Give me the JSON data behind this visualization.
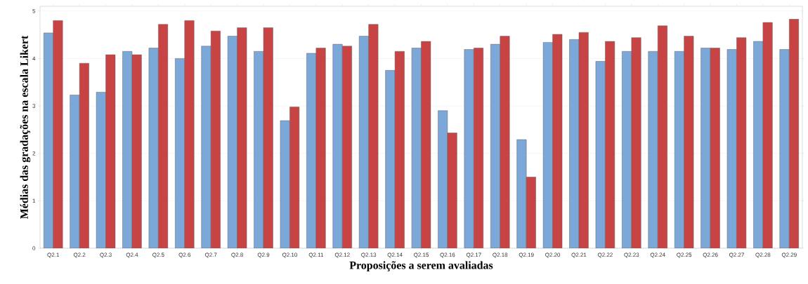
{
  "chart_data": {
    "type": "bar",
    "xlabel": "Proposições a serem avaliadas",
    "ylabel": "Médias das gradações na escala Likert",
    "categories": [
      "Q2.1",
      "Q2.2",
      "Q2.3",
      "Q2.4",
      "Q2.5",
      "Q2.6",
      "Q2.7",
      "Q2.8",
      "Q2.9",
      "Q2.10",
      "Q2.11",
      "Q2.12",
      "Q2.13",
      "Q2.14",
      "Q2.15",
      "Q2.16",
      "Q2.17",
      "Q2.18",
      "Q2.19",
      "Q2.20",
      "Q2.21",
      "Q2.22",
      "Q2.23",
      "Q2.24",
      "Q2.25",
      "Q2.26",
      "Q2.27",
      "Q2.28",
      "Q2.29"
    ],
    "series": [
      {
        "color": "#7ba7d9",
        "values": [
          4.54,
          3.23,
          3.29,
          4.15,
          4.22,
          4.0,
          4.26,
          4.47,
          4.15,
          2.69,
          4.11,
          4.3,
          4.47,
          3.75,
          4.22,
          2.9,
          4.19,
          4.3,
          2.29,
          4.34,
          4.4,
          3.94,
          4.15,
          4.15,
          4.15,
          4.22,
          4.19,
          4.36,
          4.19
        ]
      },
      {
        "color": "#c84343",
        "values": [
          4.8,
          3.9,
          4.08,
          4.08,
          4.72,
          4.8,
          4.58,
          4.65,
          4.65,
          2.98,
          4.22,
          4.26,
          4.72,
          4.15,
          4.36,
          2.43,
          4.22,
          4.47,
          1.5,
          4.51,
          4.55,
          4.36,
          4.44,
          4.69,
          4.47,
          4.22,
          4.44,
          4.76,
          4.83
        ]
      }
    ],
    "ylim": [
      0,
      5.1
    ],
    "yticks": [
      0,
      1,
      2,
      3,
      4,
      5
    ],
    "grid": "y"
  }
}
